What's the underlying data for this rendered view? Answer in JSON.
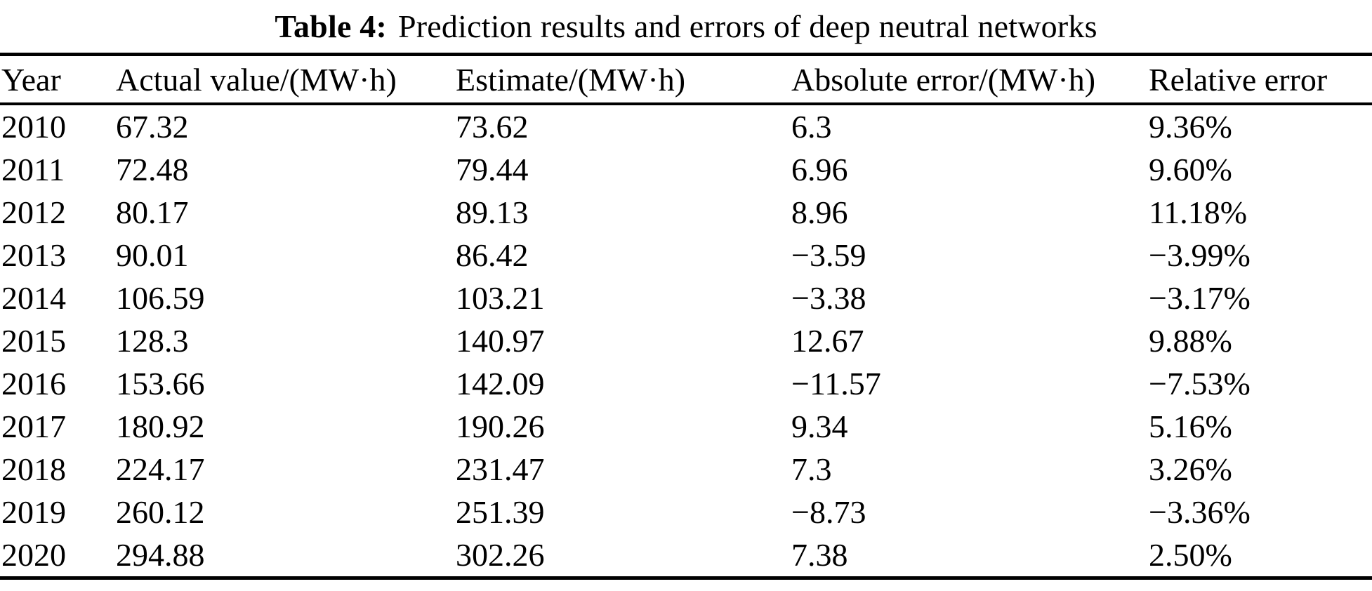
{
  "page": {
    "background": "#ffffff",
    "text_color": "#000000",
    "rule_color": "#000000"
  },
  "table": {
    "caption": {
      "label": "Table 4:",
      "text": "Prediction results and errors of deep neutral networks"
    },
    "columns": [
      "Year",
      "Actual value/(MW·h)",
      "Estimate/(MW·h)",
      "Absolute error/(MW·h)",
      "Relative error"
    ],
    "rows": [
      [
        "2010",
        "67.32",
        "73.62",
        "6.3",
        "9.36%"
      ],
      [
        "2011",
        "72.48",
        "79.44",
        "6.96",
        "9.60%"
      ],
      [
        "2012",
        "80.17",
        "89.13",
        "8.96",
        "11.18%"
      ],
      [
        "2013",
        "90.01",
        "86.42",
        "−3.59",
        "−3.99%"
      ],
      [
        "2014",
        "106.59",
        "103.21",
        "−3.38",
        "−3.17%"
      ],
      [
        "2015",
        "128.3",
        "140.97",
        "12.67",
        "9.88%"
      ],
      [
        "2016",
        "153.66",
        "142.09",
        "−11.57",
        "−7.53%"
      ],
      [
        "2017",
        "180.92",
        "190.26",
        "9.34",
        "5.16%"
      ],
      [
        "2018",
        "224.17",
        "231.47",
        "7.3",
        "3.26%"
      ],
      [
        "2019",
        "260.12",
        "251.39",
        "−8.73",
        "−3.36%"
      ],
      [
        "2020",
        "294.88",
        "302.26",
        "7.38",
        "2.50%"
      ]
    ]
  },
  "chart_data": {
    "type": "table",
    "title": "Table 4: Prediction results and errors of deep neutral networks",
    "columns": [
      "Year",
      "Actual value/(MW·h)",
      "Estimate/(MW·h)",
      "Absolute error/(MW·h)",
      "Relative error"
    ],
    "years": [
      2010,
      2011,
      2012,
      2013,
      2014,
      2015,
      2016,
      2017,
      2018,
      2019,
      2020
    ],
    "actual_value_mwh": [
      67.32,
      72.48,
      80.17,
      90.01,
      106.59,
      128.3,
      153.66,
      180.92,
      224.17,
      260.12,
      294.88
    ],
    "estimate_mwh": [
      73.62,
      79.44,
      89.13,
      86.42,
      103.21,
      140.97,
      142.09,
      190.26,
      231.47,
      251.39,
      302.26
    ],
    "absolute_error_mwh": [
      6.3,
      6.96,
      8.96,
      -3.59,
      -3.38,
      12.67,
      -11.57,
      9.34,
      7.3,
      -8.73,
      7.38
    ],
    "relative_error_pct": [
      9.36,
      9.6,
      11.18,
      -3.99,
      -3.17,
      9.88,
      -7.53,
      5.16,
      3.26,
      -3.36,
      2.5
    ]
  }
}
